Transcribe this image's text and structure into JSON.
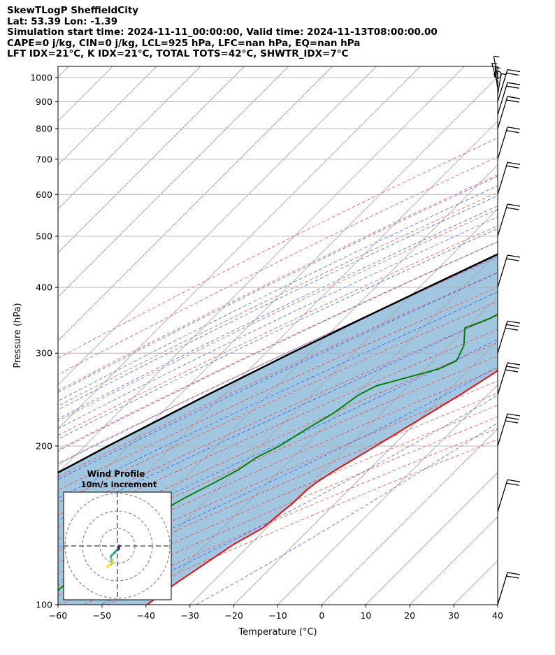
{
  "header": {
    "line1": "SkewTLogP SheffieldCity",
    "line2": "Lat: 53.39   Lon: -1.39",
    "line3": "Simulation start time: 2024-11-11_00:00:00, Valid time: 2024-11-13T08:00:00.00",
    "line4": "CAPE=0 j/kg, CIN=0 j/kg, LCL=925 hPa, LFC=nan hPa, EQ=nan hPa",
    "line5": "LFT IDX=21°C, K IDX=21°C, TOTAL TOTS=42°C, SHWTR_IDX=7°C"
  },
  "chart_data": [
    {
      "type": "skewt",
      "xlabel": "Temperature (°C)",
      "ylabel": "Pressure (hPa)",
      "xlim": [
        -60,
        40
      ],
      "ylim": [
        1050,
        100
      ],
      "yscale": "log",
      "x_ticks": [
        -60,
        -50,
        -40,
        -30,
        -20,
        -10,
        0,
        10,
        20,
        30,
        40
      ],
      "y_ticks": [
        1000,
        900,
        800,
        700,
        600,
        500,
        400,
        300,
        200,
        100
      ],
      "grid": true,
      "series": [
        {
          "color": "#ff0000",
          "points": [
            [
              1000,
              7.0
            ],
            [
              980,
              9.8
            ],
            [
              950,
              11.2
            ],
            [
              925,
              11.8
            ],
            [
              900,
              12.1
            ],
            [
              875,
              12.0
            ],
            [
              850,
              11.5
            ],
            [
              800,
              10.8
            ],
            [
              700,
              8.6
            ],
            [
              600,
              5.4
            ],
            [
              550,
              3.2
            ],
            [
              500,
              1.4
            ],
            [
              450,
              -0.6
            ],
            [
              430,
              -1.4
            ],
            [
              400,
              -2.8
            ],
            [
              350,
              -6.5
            ],
            [
              300,
              -11.0
            ],
            [
              250,
              -16.3
            ],
            [
              200,
              -23.8
            ],
            [
              180,
              -27.5
            ],
            [
              170,
              -29.1
            ],
            [
              165,
              -29.5
            ],
            [
              160,
              -29.6
            ],
            [
              155,
              -29.7
            ],
            [
              150,
              -30.2
            ],
            [
              140,
              -30.8
            ],
            [
              130,
              -33.8
            ],
            [
              120,
              -35.8
            ],
            [
              110,
              -38.0
            ],
            [
              100,
              -39.7
            ]
          ]
        },
        {
          "color": "#008000",
          "points": [
            [
              1010,
              1.0
            ],
            [
              1000,
              0.4
            ],
            [
              980,
              -0.9
            ],
            [
              960,
              -2.3
            ],
            [
              950,
              -2.5
            ],
            [
              925,
              -0.5
            ],
            [
              900,
              2.2
            ],
            [
              870,
              5.5
            ],
            [
              850,
              6.6
            ],
            [
              825,
              8.9
            ],
            [
              800,
              9.0
            ],
            [
              700,
              4.1
            ],
            [
              650,
              1.3
            ],
            [
              600,
              -0.5
            ],
            [
              575,
              -2.8
            ],
            [
              550,
              -4.4
            ],
            [
              500,
              -11.0
            ],
            [
              475,
              -15.3
            ],
            [
              450,
              -18.8
            ],
            [
              400,
              -22.4
            ],
            [
              380,
              -23.7
            ],
            [
              350,
              -26.7
            ],
            [
              335,
              -30.4
            ],
            [
              310,
              -26.6
            ],
            [
              290,
              -24.8
            ],
            [
              280,
              -27.0
            ],
            [
              260,
              -37.4
            ],
            [
              250,
              -39.3
            ],
            [
              230,
              -41.0
            ],
            [
              215,
              -43.5
            ],
            [
              200,
              -45.7
            ],
            [
              190,
              -48.4
            ],
            [
              180,
              -49.7
            ],
            [
              170,
              -52.3
            ],
            [
              160,
              -55.3
            ],
            [
              155,
              -56.6
            ],
            [
              150,
              -57.0
            ],
            [
              140,
              -56.6
            ],
            [
              130,
              -58.6
            ],
            [
              120,
              -61.7
            ],
            [
              110,
              -63.0
            ],
            [
              100,
              -63.7
            ]
          ]
        },
        {
          "color": "#000000",
          "points": [
            [
              1000,
              7.0
            ],
            [
              980,
              5.4
            ],
            [
              960,
              3.7
            ],
            [
              940,
              2.1
            ],
            [
              925,
              0.9
            ],
            [
              900,
              -0.9
            ],
            [
              850,
              -4.2
            ],
            [
              800,
              -7.7
            ],
            [
              750,
              -11.4
            ],
            [
              700,
              -15.4
            ],
            [
              650,
              -19.7
            ],
            [
              600,
              -24.4
            ],
            [
              550,
              -29.5
            ],
            [
              500,
              -35.1
            ],
            [
              450,
              -41.3
            ],
            [
              400,
              -48.1
            ],
            [
              350,
              -55.7
            ],
            [
              300,
              -64.2
            ],
            [
              250,
              -73.7
            ],
            [
              200,
              -84.7
            ],
            [
              150,
              -97.9
            ],
            [
              100,
              -114.7
            ]
          ]
        },
        {
          "color": "#000000",
          "points": [
            [
              1015,
              1.0
            ],
            [
              1000,
              1.2
            ],
            [
              975,
              1.7
            ],
            [
              950,
              2.2
            ],
            [
              925,
              0.9
            ]
          ]
        }
      ],
      "wind_barbs": {
        "color": "#000000",
        "levels": [
          1000,
          975,
          950,
          925,
          900,
          850,
          800,
          700,
          600,
          500,
          400,
          300,
          250,
          200,
          150,
          100
        ]
      }
    },
    {
      "type": "hodograph",
      "title": "Wind Profile",
      "subtitle": "10m/s increment",
      "colormap": "viridis",
      "points": [
        [
          -5.5,
          -12.2
        ],
        [
          -5.8,
          -11.6
        ],
        [
          -4.8,
          -11.0
        ],
        [
          -3.5,
          -10.6
        ],
        [
          -3.3,
          -9.6
        ],
        [
          -3.2,
          -8.1
        ],
        [
          -3.6,
          -7.0
        ],
        [
          -3.9,
          -6.0
        ],
        [
          -3.0,
          -5.0
        ],
        [
          -1.8,
          -4.0
        ],
        [
          -1.0,
          -3.0
        ],
        [
          0.0,
          -2.2
        ],
        [
          0.8,
          -2.0
        ],
        [
          0.9,
          -1.4
        ],
        [
          1.0,
          -1.0
        ],
        [
          0.6,
          -0.4
        ],
        [
          0.9,
          0.1
        ],
        [
          1.3,
          0.0
        ],
        [
          1.0,
          -0.8
        ],
        [
          0.5,
          -1.6
        ]
      ]
    }
  ]
}
